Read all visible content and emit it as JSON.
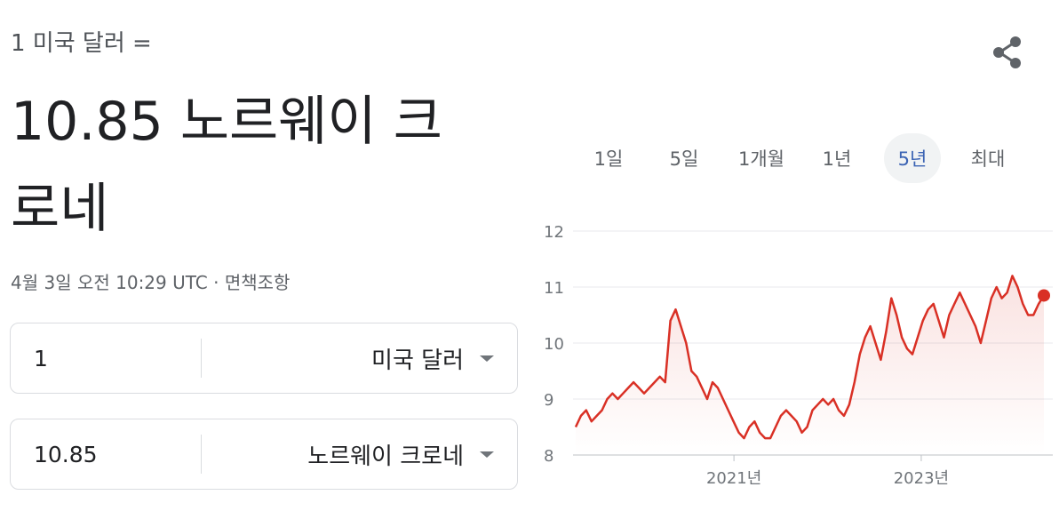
{
  "header": {
    "subtitle": "1 미국 달러 =",
    "value_line1": "10.85 노르웨이 크",
    "value_line2": "로네",
    "timestamp": "4월 3일 오전 10:29 UTC · 면책조항"
  },
  "converter": {
    "from": {
      "value": "1",
      "currency": "미국 달러"
    },
    "to": {
      "value": "10.85",
      "currency": "노르웨이 크로네"
    }
  },
  "icons": {
    "share": "share-icon",
    "dropdown": "chevron-down-icon"
  },
  "tabs": [
    {
      "label": "1일",
      "active": false
    },
    {
      "label": "5일",
      "active": false
    },
    {
      "label": "1개월",
      "active": false
    },
    {
      "label": "1년",
      "active": false
    },
    {
      "label": "5년",
      "active": true
    },
    {
      "label": "최대",
      "active": false
    }
  ],
  "colors": {
    "line": "#d93025",
    "grid": "#e8eaed",
    "active_tab_bg": "#f1f3f4",
    "active_tab_text": "#3c64b4"
  },
  "chart_data": {
    "type": "line",
    "ylim": [
      8,
      12
    ],
    "y_ticks": [
      12,
      11,
      10,
      9,
      8
    ],
    "x_ticks": [
      {
        "label": "2021년",
        "t": 0.338
      },
      {
        "label": "2023년",
        "t": 0.738
      }
    ],
    "grid": true,
    "series": [
      {
        "values": [
          8.5,
          8.7,
          8.8,
          8.6,
          8.7,
          8.8,
          9.0,
          9.1,
          9.0,
          9.1,
          9.2,
          9.3,
          9.2,
          9.1,
          9.2,
          9.3,
          9.4,
          9.3,
          10.4,
          10.6,
          10.3,
          10.0,
          9.5,
          9.4,
          9.2,
          9.0,
          9.3,
          9.2,
          9.0,
          8.8,
          8.6,
          8.4,
          8.3,
          8.5,
          8.6,
          8.4,
          8.3,
          8.3,
          8.5,
          8.7,
          8.8,
          8.7,
          8.6,
          8.4,
          8.5,
          8.8,
          8.9,
          9.0,
          8.9,
          9.0,
          8.8,
          8.7,
          8.9,
          9.3,
          9.8,
          10.1,
          10.3,
          10.0,
          9.7,
          10.2,
          10.8,
          10.5,
          10.1,
          9.9,
          9.8,
          10.1,
          10.4,
          10.6,
          10.7,
          10.4,
          10.1,
          10.5,
          10.7,
          10.9,
          10.7,
          10.5,
          10.3,
          10.0,
          10.4,
          10.8,
          11.0,
          10.8,
          10.9,
          11.2,
          11.0,
          10.7,
          10.5,
          10.5,
          10.7,
          10.85
        ]
      }
    ]
  }
}
